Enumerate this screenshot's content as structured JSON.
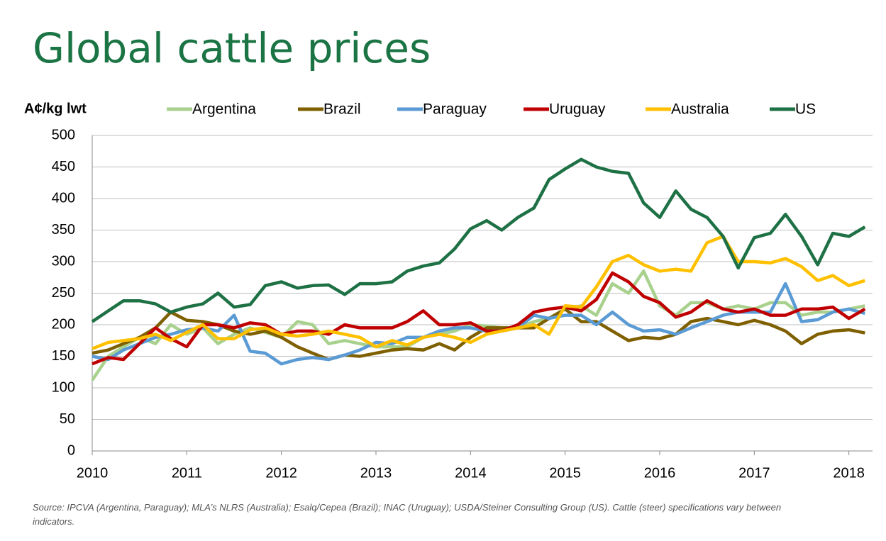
{
  "chart_data": {
    "type": "line",
    "title": "Global cattle prices",
    "y_label": "A¢/kg lwt",
    "source": "Source: IPCVA (Argentina, Paraguay); MLA’s NLRS (Australia); Esalq/Cepea (Brazil); INAC (Uruguay); USDA/Steiner Consulting Group (US). Cattle (steer) specifications vary between indicators.",
    "xlim": [
      2010,
      2018.25
    ],
    "xticks": [
      2010,
      2011,
      2012,
      2013,
      2014,
      2015,
      2016,
      2017,
      2018
    ],
    "ylim": [
      0,
      500
    ],
    "yticks": [
      0,
      50,
      100,
      150,
      200,
      250,
      300,
      350,
      400,
      450,
      500
    ],
    "grid": true,
    "x": [
      2010,
      2010.17,
      2010.33,
      2010.5,
      2010.67,
      2010.83,
      2011,
      2011.17,
      2011.33,
      2011.5,
      2011.67,
      2011.83,
      2012,
      2012.17,
      2012.33,
      2012.5,
      2012.67,
      2012.83,
      2013,
      2013.17,
      2013.33,
      2013.5,
      2013.67,
      2013.83,
      2014,
      2014.17,
      2014.33,
      2014.5,
      2014.67,
      2014.83,
      2015,
      2015.17,
      2015.33,
      2015.5,
      2015.67,
      2015.83,
      2016,
      2016.17,
      2016.33,
      2016.5,
      2016.67,
      2016.83,
      2017,
      2017.17,
      2017.33,
      2017.5,
      2017.67,
      2017.83,
      2018,
      2018.17
    ],
    "series": [
      {
        "name": "Argentina",
        "color": "#a9d18e",
        "values": [
          112,
          150,
          165,
          180,
          170,
          200,
          185,
          195,
          170,
          185,
          195,
          188,
          180,
          205,
          200,
          170,
          175,
          170,
          165,
          165,
          165,
          180,
          185,
          190,
          200,
          198,
          195,
          195,
          205,
          210,
          225,
          230,
          215,
          265,
          250,
          285,
          230,
          215,
          235,
          235,
          225,
          230,
          225,
          235,
          235,
          215,
          220,
          220,
          225,
          230
        ]
      },
      {
        "name": "Brazil",
        "color": "#7f6000",
        "values": [
          155,
          160,
          170,
          180,
          195,
          220,
          207,
          205,
          200,
          190,
          185,
          190,
          180,
          165,
          155,
          145,
          152,
          150,
          155,
          160,
          162,
          160,
          170,
          160,
          180,
          195,
          195,
          195,
          195,
          210,
          225,
          205,
          205,
          190,
          175,
          180,
          178,
          185,
          205,
          210,
          205,
          200,
          207,
          200,
          190,
          170,
          185,
          190,
          192,
          187
        ]
      },
      {
        "name": "Paraguay",
        "color": "#5b9bd5",
        "values": [
          150,
          145,
          160,
          170,
          180,
          185,
          192,
          195,
          190,
          215,
          158,
          155,
          138,
          145,
          148,
          145,
          152,
          160,
          172,
          170,
          180,
          180,
          190,
          195,
          195,
          190,
          190,
          195,
          215,
          210,
          215,
          215,
          200,
          220,
          200,
          190,
          192,
          185,
          195,
          205,
          215,
          220,
          220,
          220,
          265,
          205,
          208,
          220,
          225,
          218
        ]
      },
      {
        "name": "Uruguay",
        "color": "#c00000",
        "values": [
          138,
          148,
          145,
          170,
          195,
          178,
          165,
          200,
          200,
          195,
          203,
          200,
          185,
          190,
          190,
          185,
          200,
          195,
          195,
          195,
          205,
          222,
          200,
          200,
          203,
          190,
          190,
          200,
          220,
          225,
          228,
          222,
          240,
          282,
          268,
          245,
          235,
          212,
          220,
          238,
          225,
          220,
          225,
          215,
          215,
          225,
          225,
          228,
          210,
          225
        ]
      },
      {
        "name": "Australia",
        "color": "#ffc000",
        "values": [
          162,
          172,
          175,
          178,
          185,
          175,
          188,
          200,
          178,
          178,
          192,
          195,
          185,
          182,
          185,
          190,
          185,
          180,
          165,
          175,
          168,
          180,
          185,
          180,
          172,
          185,
          190,
          195,
          200,
          185,
          230,
          228,
          260,
          300,
          310,
          295,
          285,
          288,
          285,
          330,
          340,
          300,
          300,
          298,
          305,
          292,
          270,
          278,
          262,
          270
        ]
      },
      {
        "name": "US",
        "color": "#1e7145",
        "values": [
          205,
          222,
          238,
          238,
          233,
          220,
          228,
          233,
          250,
          228,
          232,
          262,
          268,
          258,
          262,
          263,
          248,
          265,
          265,
          268,
          285,
          293,
          298,
          320,
          352,
          365,
          350,
          370,
          385,
          430,
          447,
          462,
          450,
          443,
          440,
          393,
          370,
          412,
          383,
          370,
          340,
          290,
          338,
          345,
          375,
          340,
          295,
          345,
          340,
          355
        ]
      }
    ]
  }
}
